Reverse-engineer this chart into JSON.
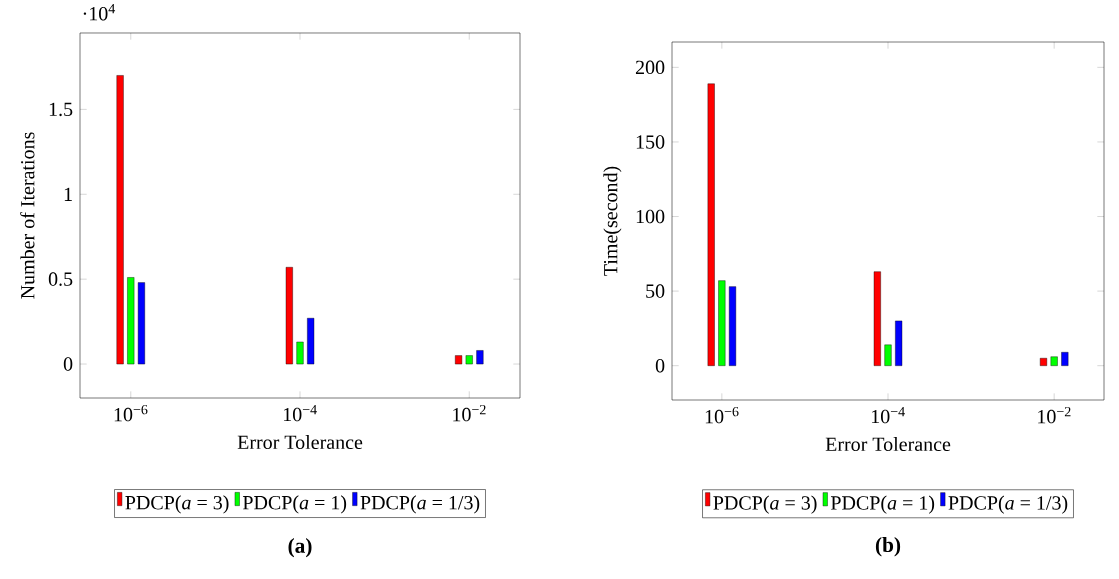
{
  "chart_data": [
    {
      "type": "bar",
      "categories": [
        "10$^{−6}$",
        "10$^{−4}$",
        "10$^{−2}$"
      ],
      "xlabel": "Error Tolerance",
      "ylabel": "Number of Iterations",
      "ylim": [
        -0.2,
        1.95
      ],
      "yticks": [
        0,
        0.5,
        1,
        1.5
      ],
      "legend": "bottom",
      "series": [
        {
          "name": "PDCP(*a* = 3)",
          "color": "#ff0000",
          "values": [
            1.7,
            0.57,
            0.05
          ]
        },
        {
          "name": "PDCP(*a* = 1)",
          "color": "#00ff00",
          "values": [
            0.51,
            0.13,
            0.05
          ]
        },
        {
          "name": "PDCP(*a* = 1/3)",
          "color": "#0000ff",
          "values": [
            0.48,
            0.27,
            0.08
          ]
        }
      ],
      "annotations": [
        "·10$^{4}$",
        "**(a)**"
      ]
    },
    {
      "type": "bar",
      "categories": [
        "10$^{−6}$",
        "10$^{−4}$",
        "10$^{−2}$"
      ],
      "xlabel": "Error Tolerance",
      "ylabel": "Time(second)",
      "ylim": [
        -23,
        217
      ],
      "yticks": [
        0,
        50,
        100,
        150,
        200
      ],
      "legend": "bottom",
      "series": [
        {
          "name": "PDCP(*a* = 3)",
          "color": "#ff0000",
          "values": [
            189,
            63,
            5
          ]
        },
        {
          "name": "PDCP(*a* = 1)",
          "color": "#00ff00",
          "values": [
            57,
            14,
            6
          ]
        },
        {
          "name": "PDCP(*a* = 1/3)",
          "color": "#0000ff",
          "values": [
            53,
            30,
            9
          ]
        }
      ],
      "annotations": [
        "**(b)**"
      ]
    }
  ]
}
